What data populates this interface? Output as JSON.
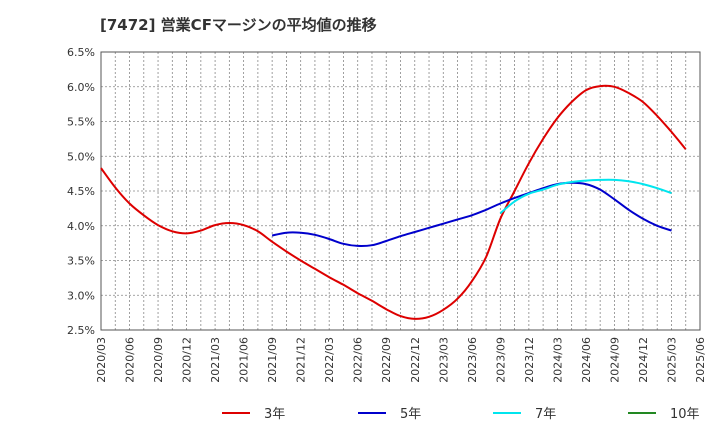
{
  "title": "[7472]  営業CFマージンの平均値の推移",
  "chart_data": {
    "type": "line",
    "title": "[7472]  営業CFマージンの平均値の推移",
    "xlabel": "",
    "ylabel": "",
    "x_categories": [
      "2020/03",
      "2020/06",
      "2020/09",
      "2020/12",
      "2021/03",
      "2021/06",
      "2021/09",
      "2021/12",
      "2022/03",
      "2022/06",
      "2022/09",
      "2022/12",
      "2023/03",
      "2023/06",
      "2023/09",
      "2023/12",
      "2024/03",
      "2024/06",
      "2024/09",
      "2024/12",
      "2025/03",
      "2025/06"
    ],
    "y_ticks": [
      "6.5%",
      "6.0%",
      "5.5%",
      "5.0%",
      "4.5%",
      "4.0%",
      "3.5%",
      "3.0%",
      "2.5%"
    ],
    "ylim": [
      2.5,
      6.5
    ],
    "grid": true,
    "legend_position": "bottom",
    "series": [
      {
        "name": "3年",
        "color": "#dd0000",
        "points": [
          [
            0,
            4.83
          ],
          [
            0.5,
            4.55
          ],
          [
            1,
            4.32
          ],
          [
            1.5,
            4.15
          ],
          [
            2,
            4.01
          ],
          [
            2.5,
            3.92
          ],
          [
            3,
            3.89
          ],
          [
            3.5,
            3.93
          ],
          [
            4,
            4.01
          ],
          [
            4.5,
            4.04
          ],
          [
            5,
            4.01
          ],
          [
            5.5,
            3.92
          ],
          [
            6,
            3.77
          ],
          [
            6.5,
            3.63
          ],
          [
            7,
            3.5
          ],
          [
            7.5,
            3.38
          ],
          [
            8,
            3.26
          ],
          [
            8.5,
            3.15
          ],
          [
            9,
            3.03
          ],
          [
            9.5,
            2.92
          ],
          [
            10,
            2.8
          ],
          [
            10.5,
            2.7
          ],
          [
            11,
            2.66
          ],
          [
            11.5,
            2.69
          ],
          [
            12,
            2.79
          ],
          [
            12.5,
            2.95
          ],
          [
            13,
            3.2
          ],
          [
            13.5,
            3.55
          ],
          [
            14,
            4.1
          ],
          [
            14.5,
            4.5
          ],
          [
            15,
            4.9
          ],
          [
            15.5,
            5.25
          ],
          [
            16,
            5.55
          ],
          [
            16.5,
            5.78
          ],
          [
            17,
            5.95
          ],
          [
            17.5,
            6.01
          ],
          [
            18,
            6.0
          ],
          [
            18.5,
            5.91
          ],
          [
            19,
            5.78
          ],
          [
            19.5,
            5.58
          ],
          [
            20,
            5.35
          ],
          [
            20.5,
            5.1
          ]
        ]
      },
      {
        "name": "5年",
        "color": "#0000cc",
        "points": [
          [
            6,
            3.86
          ],
          [
            6.5,
            3.9
          ],
          [
            7,
            3.9
          ],
          [
            7.5,
            3.87
          ],
          [
            8,
            3.81
          ],
          [
            8.5,
            3.74
          ],
          [
            9,
            3.71
          ],
          [
            9.5,
            3.72
          ],
          [
            10,
            3.78
          ],
          [
            10.5,
            3.85
          ],
          [
            11,
            3.91
          ],
          [
            11.5,
            3.97
          ],
          [
            12,
            4.03
          ],
          [
            12.5,
            4.09
          ],
          [
            13,
            4.15
          ],
          [
            13.5,
            4.23
          ],
          [
            14,
            4.32
          ],
          [
            14.5,
            4.4
          ],
          [
            15,
            4.47
          ],
          [
            15.5,
            4.54
          ],
          [
            16,
            4.6
          ],
          [
            16.5,
            4.62
          ],
          [
            17,
            4.6
          ],
          [
            17.5,
            4.52
          ],
          [
            18,
            4.38
          ],
          [
            18.5,
            4.23
          ],
          [
            19,
            4.1
          ],
          [
            19.5,
            4.0
          ],
          [
            20,
            3.93
          ]
        ]
      },
      {
        "name": "7年",
        "color": "#00e5ee",
        "points": [
          [
            14,
            4.18
          ],
          [
            14.5,
            4.35
          ],
          [
            15,
            4.46
          ],
          [
            15.5,
            4.52
          ],
          [
            16,
            4.59
          ],
          [
            16.5,
            4.63
          ],
          [
            17,
            4.65
          ],
          [
            17.5,
            4.66
          ],
          [
            18,
            4.66
          ],
          [
            18.5,
            4.64
          ],
          [
            19,
            4.6
          ],
          [
            19.5,
            4.54
          ],
          [
            20,
            4.47
          ]
        ]
      },
      {
        "name": "10年",
        "color": "#228822",
        "points": []
      }
    ]
  }
}
